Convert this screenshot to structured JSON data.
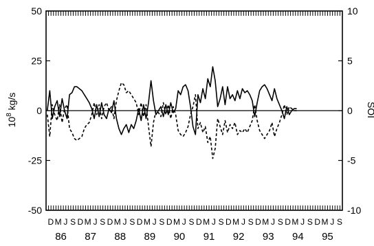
{
  "chart_data": {
    "type": "line",
    "x_start": "Dec 1985",
    "x_step": "month",
    "x_categories_years": [
      "86",
      "87",
      "88",
      "89",
      "90",
      "91",
      "92",
      "93",
      "94",
      "95"
    ],
    "month_letters": [
      "D",
      "M",
      "J",
      "S"
    ],
    "y_left": {
      "label": "10⁸ kg/s",
      "label_base": "10",
      "label_exp": "8",
      "label_unit": " kg/s",
      "ylim": [
        -50,
        50
      ],
      "ticks": [
        "50",
        "25",
        "0",
        "-25",
        "-50"
      ]
    },
    "y_right": {
      "label": "SOI",
      "ylim": [
        -10,
        10
      ],
      "ticks": [
        "10",
        "5",
        "0",
        "-5",
        "-10"
      ]
    },
    "zero_line": true,
    "series": [
      {
        "axis": "left",
        "style": "solid",
        "values": [
          0,
          10,
          -4,
          2,
          5,
          -3,
          6,
          0,
          -4,
          8,
          9,
          12,
          12,
          11,
          10,
          8,
          6,
          4,
          1,
          -4,
          3,
          -3,
          4,
          -2,
          -4,
          1,
          -1,
          5,
          -4,
          -9,
          -12,
          -9,
          -7,
          -11,
          -7,
          -9,
          -5,
          1,
          -5,
          3,
          -4,
          4,
          15,
          5,
          -2,
          0,
          2,
          -3,
          3,
          -2,
          4,
          -1,
          1,
          10,
          8,
          12,
          13,
          10,
          2,
          -8,
          -12,
          8,
          4,
          11,
          6,
          16,
          12,
          22,
          15,
          2,
          6,
          12,
          3,
          12,
          6,
          8,
          5,
          10,
          6,
          11,
          9,
          10,
          8,
          5,
          -3,
          4,
          10,
          12,
          13,
          11,
          8,
          5,
          11,
          6,
          3,
          0,
          -4,
          2,
          -2,
          0,
          1,
          1
        ]
      },
      {
        "axis": "left",
        "style": "dashed",
        "values": [
          -2,
          -13,
          3,
          -2,
          -5,
          3,
          -6,
          1,
          3,
          -9,
          -11,
          -14,
          -15,
          -14,
          -13,
          -9,
          -7,
          -6,
          -2,
          4,
          -2,
          3,
          -4,
          2,
          4,
          0,
          2,
          -4,
          5,
          10,
          14,
          13,
          9,
          10,
          8,
          6,
          4,
          -2,
          4,
          -3,
          3,
          -8,
          -18,
          -6,
          0,
          -1,
          -3,
          4,
          -2,
          3,
          -4,
          2,
          -2,
          -10,
          -12,
          -13,
          -11,
          -8,
          -2,
          2,
          8,
          -9,
          -6,
          -11,
          -8,
          -16,
          -13,
          -24,
          -19,
          -4,
          -8,
          -12,
          -5,
          -11,
          -7,
          -9,
          -6,
          -12,
          -10,
          -11,
          -9,
          -11,
          -8,
          -5,
          3,
          -5,
          -10,
          -12,
          -14,
          -12,
          -10,
          -6,
          -13,
          -9,
          -6,
          -2,
          3,
          -2,
          2,
          1,
          0,
          0
        ]
      }
    ]
  }
}
